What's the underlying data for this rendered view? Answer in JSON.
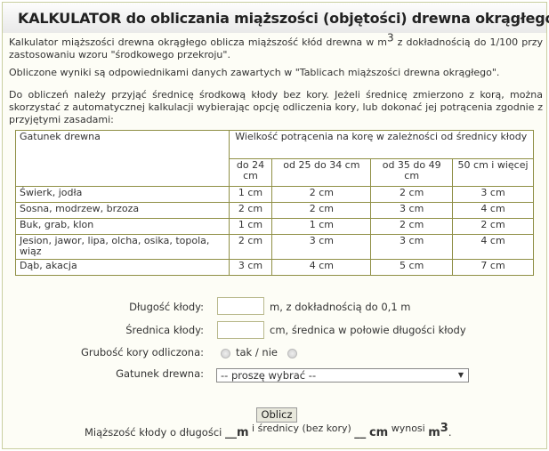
{
  "title": "KALKULATOR do obliczania miąższości (objętości) drewna okrągłego",
  "intro": {
    "p1a": "Kalkulator miąższości drewna okrągłego oblicza miąższość kłód drewna w m",
    "p1sup": "3",
    "p1b": " z dokładnością do 1/100 przy zastosowaniu wzoru \"środkowego przekroju\".",
    "p2": "Obliczone wyniki są odpowiednikami danych  zawartych w \"Tablicach miąższości drewna okrągłego\".",
    "p3": "Do obliczeń należy przyjąć średnicę środkową kłody bez kory. Jeżeli średnicę zmierzono z korą, można skorzystać z automatycznej kalkulacji wybierając opcję odliczenia kory, lub dokonać jej potrącenia zgodnie z przyjętymi zasadami:"
  },
  "table": {
    "col0": "Gatunek drewna",
    "group": "Wielkość potrącenia na korę w zależności od średnicy kłody",
    "cols": [
      "do 24 cm",
      "od 25 do 34 cm",
      "od 35 do 49 cm",
      "50 cm i więcej"
    ],
    "rows": [
      {
        "name": "Świerk, jodła",
        "v": [
          "1 cm",
          "2 cm",
          "2 cm",
          "3 cm"
        ]
      },
      {
        "name": "Sosna, modrzew, brzoza",
        "v": [
          "2 cm",
          "2 cm",
          "3 cm",
          "4 cm"
        ]
      },
      {
        "name": "Buk, grab, klon",
        "v": [
          "1 cm",
          "1 cm",
          "2 cm",
          "2 cm"
        ]
      },
      {
        "name": "Jesion, jawor, lipa, olcha, osika, topola, wiąz",
        "v": [
          "2 cm",
          "3 cm",
          "3 cm",
          "4 cm"
        ]
      },
      {
        "name": "Dąb, akacja",
        "v": [
          "3 cm",
          "4 cm",
          "5 cm",
          "7 cm"
        ]
      }
    ]
  },
  "form": {
    "length_label": "Długość kłody:",
    "length_value": "",
    "length_hint": "m, z dokładnością do 0,1 m",
    "diameter_label": "Średnica kłody:",
    "diameter_value": "",
    "diameter_hint": "cm, średnica w połowie długości kłody",
    "bark_label": "Grubość kory odliczona:",
    "bark_options": "tak / nie",
    "species_label": "Gatunek drewna:",
    "species_selected": "-- proszę wybrać --",
    "submit": "Oblicz"
  },
  "result": {
    "t1": "Miąższość kłody o długości ",
    "len": "__",
    "u1": "m",
    "t2": " i średnicy (bez kory) ",
    "dia": "__",
    "u2": "cm",
    "t3": " wynosi ",
    "u3": "m",
    "u3sup": "3",
    "t4": "."
  }
}
